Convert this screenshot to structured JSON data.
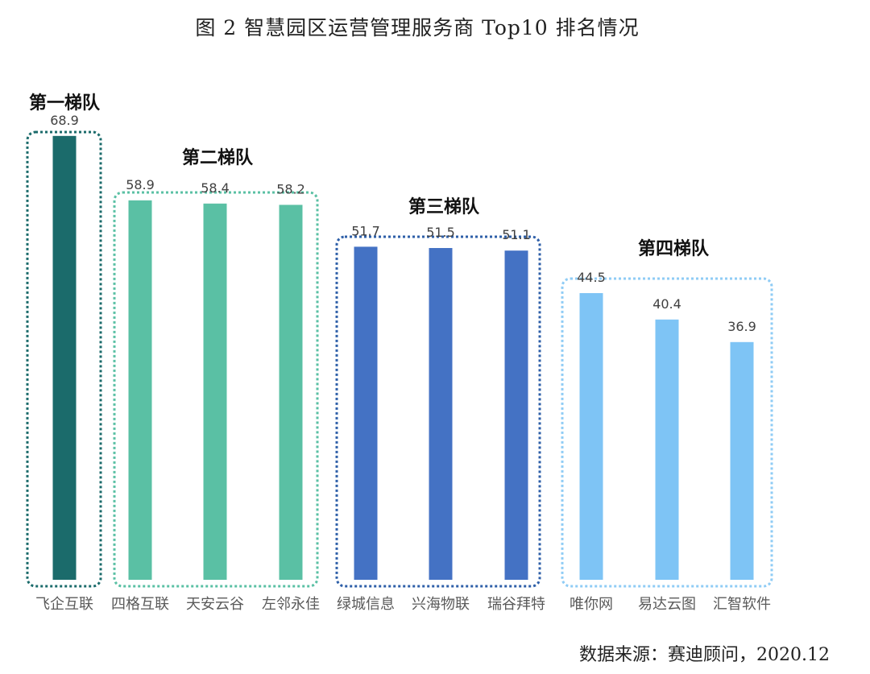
{
  "title": "图 2 智慧园区运营管理服务商 Top10 排名情况",
  "source": "数据来源：赛迪顾问，2020.12",
  "chart_data": {
    "type": "bar",
    "categories": [
      "飞企互联",
      "四格互联",
      "天安云谷",
      "左邻永佳",
      "绿城信息",
      "兴海物联",
      "瑞谷拜特",
      "唯你网",
      "易达云图",
      "汇智软件"
    ],
    "values": [
      68.9,
      58.9,
      58.4,
      58.2,
      51.7,
      51.5,
      51.1,
      44.5,
      40.4,
      36.9
    ],
    "value_labels": [
      "68.9",
      "58.9",
      "58.4",
      "58.2",
      "51.7",
      "51.5",
      "51.1",
      "44.5",
      "40.4",
      "36.9"
    ],
    "ylim": [
      0,
      75
    ],
    "grid": false,
    "legend": "none",
    "groups": [
      {
        "label": "第一梯队",
        "members": [
          0
        ],
        "color": "#1b6b6b"
      },
      {
        "label": "第二梯队",
        "members": [
          1,
          2,
          3
        ],
        "color": "#5ac0a4"
      },
      {
        "label": "第三梯队",
        "members": [
          4,
          5,
          6
        ],
        "color": "#4472c4"
      },
      {
        "label": "第四梯队",
        "members": [
          7,
          8,
          9
        ],
        "color": "#7ec4f5"
      }
    ]
  }
}
